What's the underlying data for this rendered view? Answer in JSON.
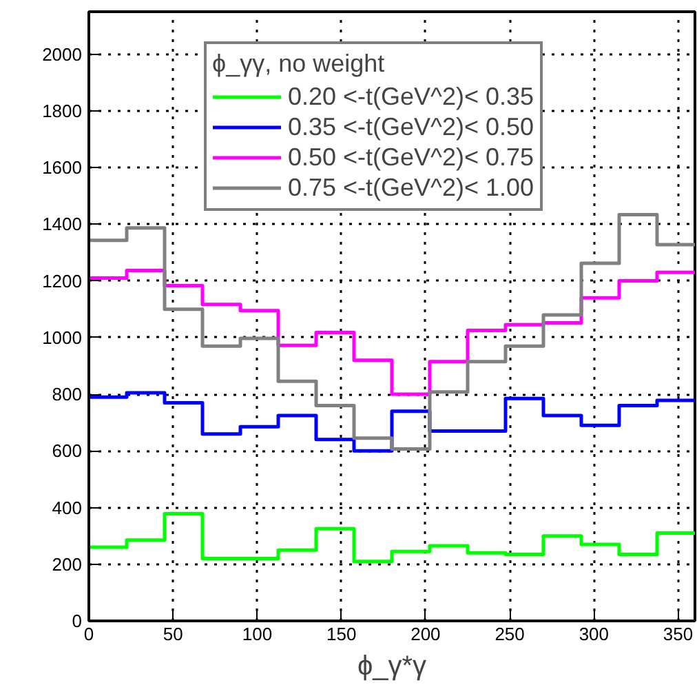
{
  "chart_data": {
    "type": "histogram",
    "xlabel": "ϕ_γ*γ",
    "legend_title": "ϕ_γγ, no weight",
    "bins": [
      0,
      22.5,
      45,
      67.5,
      90,
      112.5,
      135,
      157.5,
      180,
      202.5,
      225,
      247.5,
      270,
      292.5,
      315,
      337.5,
      360
    ],
    "series": [
      {
        "name": "0.20 <-t(GeV^2)< 0.35",
        "color": "#00ff00",
        "values": [
          260,
          285,
          378,
          220,
          220,
          250,
          325,
          210,
          245,
          265,
          240,
          235,
          300,
          270,
          235,
          310
        ]
      },
      {
        "name": "0.35 <-t(GeV^2)< 0.50",
        "color": "#0000ff",
        "values": [
          790,
          805,
          770,
          660,
          685,
          725,
          640,
          600,
          740,
          670,
          670,
          785,
          725,
          690,
          760,
          778
        ]
      },
      {
        "name": "0.50 <-t(GeV^2)< 0.75",
        "color": "#ff00ff",
        "values": [
          1210,
          1237,
          1183,
          1117,
          1095,
          972,
          1018,
          920,
          800,
          915,
          1025,
          1045,
          1052,
          1140,
          1200,
          1230
        ]
      },
      {
        "name": "0.75 <-t(GeV^2)< 1.00",
        "color": "#808080",
        "values": [
          1343,
          1387,
          1100,
          970,
          997,
          846,
          760,
          645,
          607,
          808,
          915,
          970,
          1080,
          1262,
          1434,
          1328
        ]
      }
    ],
    "xlim": [
      0,
      360
    ],
    "ylim": [
      0,
      2150
    ],
    "xticks": [
      0,
      50,
      100,
      150,
      200,
      250,
      300,
      350
    ],
    "yticks": [
      0,
      200,
      400,
      600,
      800,
      1000,
      1200,
      1400,
      1600,
      1800,
      2000
    ],
    "grid": true,
    "legend": "top"
  }
}
